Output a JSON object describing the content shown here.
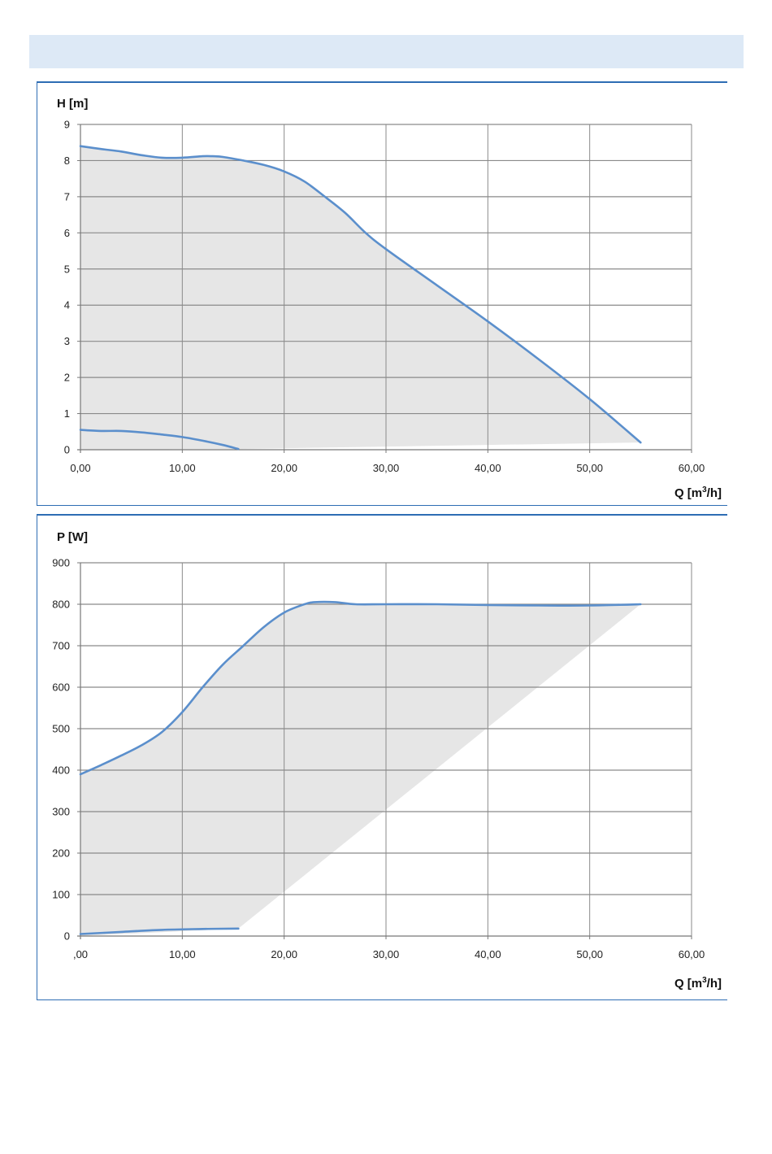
{
  "header_bar": {
    "color": "#dde9f6"
  },
  "colors": {
    "frame": "#2e6db4",
    "curve": "#5b8fcc",
    "curve_light": "#9dbbe0",
    "area": "#e6e6e6",
    "grid": "#8a8a8a"
  },
  "chart_data": [
    {
      "type": "line",
      "ylabel": "H [m]",
      "xlabel_main": "Q [m",
      "xlabel_sup": "3",
      "xlabel_tail": "/h]",
      "xlim": [
        0,
        60
      ],
      "ylim": [
        0,
        9
      ],
      "x_ticks": [
        0,
        10,
        20,
        30,
        40,
        50,
        60
      ],
      "x_tick_labels": [
        "0,00",
        "10,00",
        "20,00",
        "30,00",
        "40,00",
        "50,00",
        "60,00"
      ],
      "y_ticks": [
        0,
        1,
        2,
        3,
        4,
        5,
        6,
        7,
        8,
        9
      ],
      "y_tick_labels": [
        "0",
        "1",
        "2",
        "3",
        "4",
        "5",
        "6",
        "7",
        "8",
        "9"
      ],
      "grid": true,
      "series": [
        {
          "role": "max",
          "x": [
            0,
            2,
            4,
            6,
            8,
            10,
            12,
            13,
            14,
            16,
            18,
            20,
            22,
            24,
            26,
            28,
            30,
            35,
            40,
            45,
            50,
            55
          ],
          "y": [
            8.4,
            8.32,
            8.25,
            8.15,
            8.08,
            8.08,
            8.12,
            8.12,
            8.1,
            8.0,
            7.88,
            7.7,
            7.42,
            7.0,
            6.55,
            6.0,
            5.55,
            4.55,
            3.55,
            2.5,
            1.4,
            0.2
          ]
        },
        {
          "role": "min",
          "x": [
            0,
            2,
            4,
            6,
            8,
            10,
            12,
            14,
            15.5
          ],
          "y": [
            0.55,
            0.52,
            0.52,
            0.48,
            0.42,
            0.35,
            0.25,
            0.13,
            0.02
          ]
        }
      ],
      "area_bottom": {
        "x": [
          0,
          15.5,
          55
        ],
        "y": [
          0,
          0.02,
          0.2
        ]
      }
    },
    {
      "type": "line",
      "ylabel": "P [W]",
      "xlabel_main": "Q [m",
      "xlabel_sup": "3",
      "xlabel_tail": "/h]",
      "xlim": [
        0,
        60
      ],
      "ylim": [
        0,
        900
      ],
      "x_ticks": [
        0,
        10,
        20,
        30,
        40,
        50,
        60
      ],
      "x_tick_labels": [
        ",00",
        "10,00",
        "20,00",
        "30,00",
        "40,00",
        "50,00",
        "60,00"
      ],
      "y_ticks": [
        0,
        100,
        200,
        300,
        400,
        500,
        600,
        700,
        800,
        900
      ],
      "y_tick_labels": [
        "0",
        "100",
        "200",
        "300",
        "400",
        "500",
        "600",
        "700",
        "800",
        "900"
      ],
      "grid": true,
      "series": [
        {
          "role": "max",
          "x": [
            0,
            2,
            4,
            6,
            8,
            10,
            12,
            14,
            16,
            18,
            20,
            22,
            23,
            25,
            27,
            30,
            35,
            40,
            45,
            50,
            55
          ],
          "y": [
            390,
            412,
            435,
            460,
            492,
            540,
            600,
            655,
            700,
            745,
            780,
            800,
            805,
            805,
            800,
            800,
            800,
            798,
            797,
            797,
            800
          ]
        },
        {
          "role": "min",
          "x": [
            0,
            4,
            8,
            12,
            15.5
          ],
          "y": [
            5,
            10,
            15,
            17,
            18
          ]
        }
      ],
      "area_bottom": {
        "x": [
          0,
          15.5,
          55
        ],
        "y": [
          0,
          18,
          800
        ]
      }
    }
  ]
}
